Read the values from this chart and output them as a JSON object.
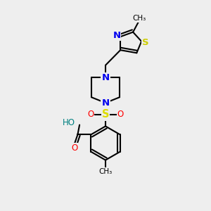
{
  "bg_color": "#eeeeee",
  "atom_colors": {
    "C": "#000000",
    "N": "#0000ee",
    "O": "#ff0000",
    "S_sulfonyl": "#dddd00",
    "S_thiazole": "#cccc00",
    "H": "#008080"
  },
  "bond_color": "#000000",
  "bond_width": 1.5,
  "font_size_atoms": 8.5,
  "fig_size": [
    3.0,
    3.0
  ],
  "dpi": 100,
  "xlim": [
    0,
    10
  ],
  "ylim": [
    0,
    11
  ]
}
